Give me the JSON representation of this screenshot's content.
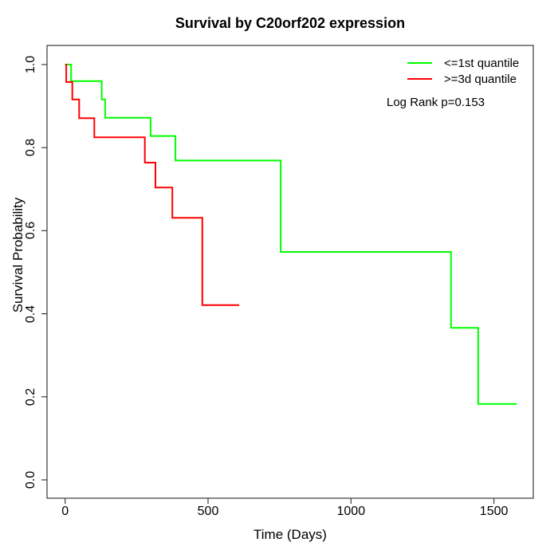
{
  "title": "Survival by C20orf202 expression",
  "x_axis": {
    "label": "Time (Days)",
    "tick_labels": [
      "0",
      "500",
      "1000",
      "1500"
    ]
  },
  "y_axis": {
    "label": "Survival Probability",
    "tick_labels": [
      "0.0",
      "0.2",
      "0.4",
      "0.6",
      "0.8",
      "1.0"
    ]
  },
  "legend": {
    "items": [
      {
        "label": "<=1st quantile",
        "color": "#00ff00"
      },
      {
        "label": ">=3d quantile",
        "color": "#ff0000"
      }
    ],
    "stat_note": "Log Rank p=0.153"
  },
  "chart_data": {
    "type": "line",
    "subtype": "kaplan-meier-step",
    "title": "Survival by C20orf202 expression",
    "xlabel": "Time (Days)",
    "ylabel": "Survival Probability",
    "xlim": [
      0,
      1580
    ],
    "ylim": [
      0,
      1
    ],
    "x_ticks": [
      0,
      500,
      1000,
      1500
    ],
    "y_ticks": [
      0,
      0.2,
      0.4,
      0.6,
      0.8,
      1
    ],
    "grid": false,
    "legend_position": "top-right",
    "annotation": "Log Rank p=0.153",
    "series": [
      {
        "name": "<=1st quantile",
        "color": "#00ff00",
        "steps": [
          [
            0,
            1.0
          ],
          [
            21,
            0.96
          ],
          [
            128,
            0.916
          ],
          [
            140,
            0.872
          ],
          [
            299,
            0.828
          ],
          [
            386,
            0.769
          ],
          [
            754,
            0.549
          ],
          [
            1350,
            0.366
          ],
          [
            1445,
            0.183
          ]
        ],
        "end_time": 1580
      },
      {
        "name": ">=3d quantile",
        "color": "#ff0000",
        "steps": [
          [
            0,
            1.0
          ],
          [
            4,
            0.958
          ],
          [
            25,
            0.916
          ],
          [
            49,
            0.871
          ],
          [
            102,
            0.825
          ],
          [
            279,
            0.764
          ],
          [
            316,
            0.704
          ],
          [
            375,
            0.631
          ],
          [
            480,
            0.421
          ]
        ],
        "end_time": 609
      }
    ]
  }
}
